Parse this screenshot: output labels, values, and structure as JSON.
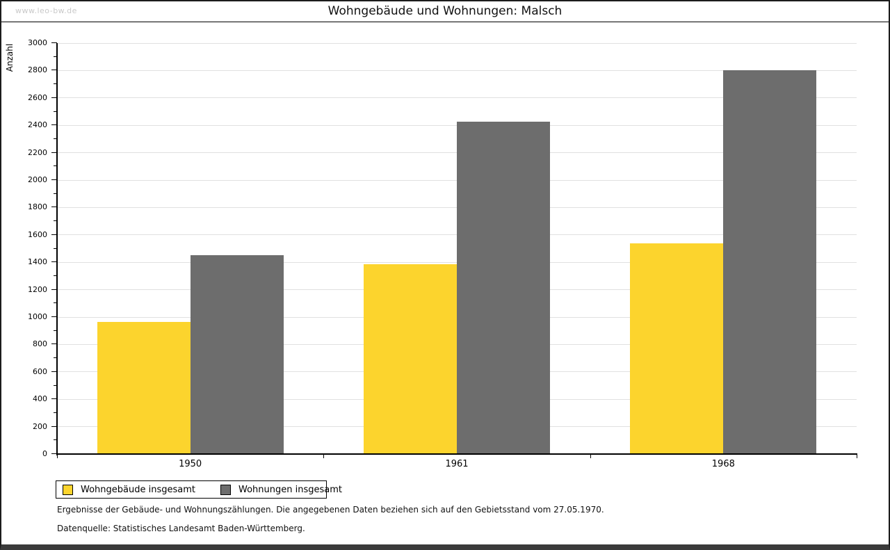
{
  "watermark": "www.leo-bw.de",
  "title": "Wohngebäude und Wohnungen: Malsch",
  "legend": {
    "items": [
      {
        "label": "Wohngebäude insgesamt",
        "color": "#FCD42D"
      },
      {
        "label": "Wohnungen insgesamt",
        "color": "#6D6D6D"
      }
    ]
  },
  "footer": {
    "line1": "Ergebnisse der Gebäude- und Wohnungszählungen. Die angegebenen Daten beziehen sich auf den Gebietsstand vom 27.05.1970.",
    "line2": "Datenquelle: Statistisches Landesamt Baden-Württemberg."
  },
  "chart_data": {
    "type": "bar",
    "title": "Wohngebäude und Wohnungen: Malsch",
    "categories": [
      "1950",
      "1961",
      "1968"
    ],
    "series": [
      {
        "name": "Wohngebäude insgesamt",
        "color": "#FCD42D",
        "values": [
          965,
          1385,
          1540
        ]
      },
      {
        "name": "Wohnungen insgesamt",
        "color": "#6D6D6D",
        "values": [
          1450,
          2425,
          2800
        ]
      }
    ],
    "xlabel": "",
    "ylabel": "Anzahl",
    "ylim": [
      0,
      3000
    ],
    "ytick_major": 200,
    "ytick_minor": 100,
    "grid": true,
    "gridline_color": "#e0e0e0",
    "legend_position": "bottom-left"
  }
}
